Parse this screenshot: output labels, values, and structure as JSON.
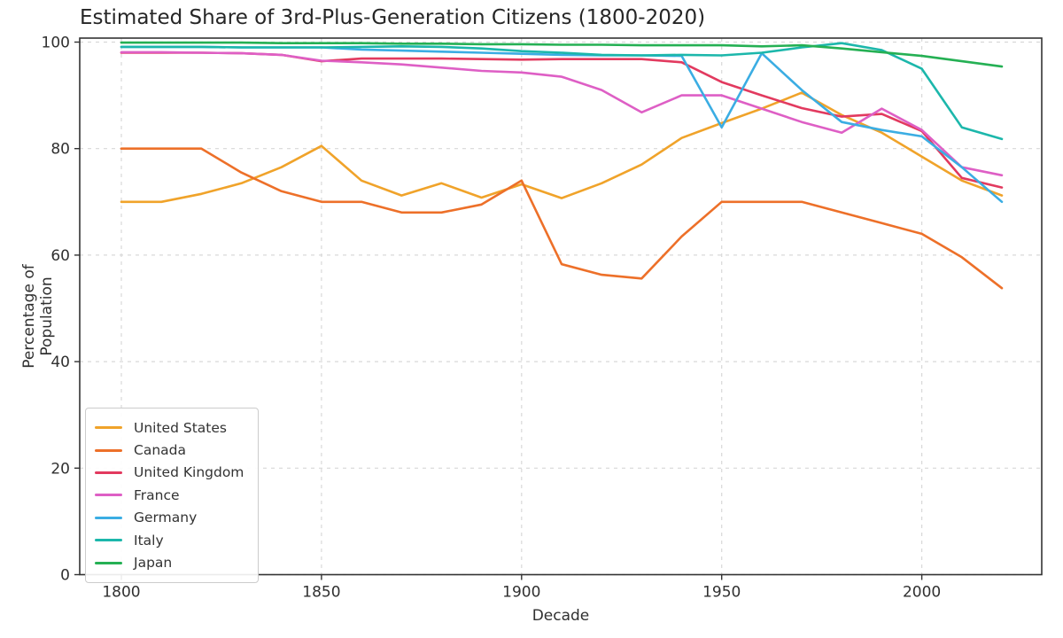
{
  "title": "Estimated Share of 3rd-Plus-Generation Citizens (1800-2020)",
  "chart_data": {
    "type": "line",
    "xlabel": "Decade",
    "ylabel": "Percentage of Population",
    "x": [
      1800,
      1810,
      1820,
      1830,
      1840,
      1850,
      1860,
      1870,
      1880,
      1890,
      1900,
      1910,
      1920,
      1930,
      1940,
      1950,
      1960,
      1970,
      1980,
      1990,
      2000,
      2010,
      2020
    ],
    "x_ticks": [
      1800,
      1850,
      1900,
      1950,
      2000
    ],
    "y_ticks": [
      0,
      20,
      40,
      60,
      80,
      100
    ],
    "xlim": [
      1789,
      2031
    ],
    "ylim": [
      0,
      100
    ],
    "grid": true,
    "grid_style": "dashed",
    "legend_position": "lower left",
    "series": [
      {
        "name": "United States",
        "color": "#F0A32A",
        "values": [
          70,
          70,
          71.5,
          73.5,
          76.5,
          80.5,
          74,
          71.2,
          73.5,
          70.8,
          73.3,
          70.7,
          73.5,
          77,
          82,
          84.8,
          87.5,
          90.5,
          86.3,
          83,
          78.5,
          74,
          71.2
        ]
      },
      {
        "name": "Canada",
        "color": "#ED7029",
        "values": [
          80,
          80,
          80,
          75.5,
          72,
          70,
          70,
          68,
          68,
          69.5,
          74,
          58.3,
          56.3,
          55.6,
          63.5,
          70,
          70,
          70,
          68,
          66,
          64,
          59.6,
          53.8
        ]
      },
      {
        "name": "United Kingdom",
        "color": "#E23A5F",
        "values": [
          98,
          98,
          98,
          97.9,
          97.6,
          96.4,
          96.9,
          96.9,
          96.9,
          96.8,
          96.7,
          96.8,
          96.8,
          96.8,
          96.2,
          92.5,
          90,
          87.6,
          86,
          86.5,
          83.3,
          74.5,
          72.7
        ]
      },
      {
        "name": "France",
        "color": "#DE5FC5",
        "values": [
          98.1,
          98.1,
          98,
          97.9,
          97.6,
          96.5,
          96.2,
          95.8,
          95.2,
          94.6,
          94.3,
          93.5,
          91,
          86.8,
          90,
          90,
          87.5,
          85,
          83,
          87.5,
          83.5,
          76.5,
          75
        ]
      },
      {
        "name": "Germany",
        "color": "#3BADE3",
        "values": [
          99.1,
          99.1,
          99.1,
          99,
          99,
          99,
          98.6,
          98.4,
          98.2,
          98,
          97.8,
          97.6,
          97.5,
          97.5,
          97.4,
          84,
          97.9,
          91,
          85,
          83.5,
          82.3,
          76.5,
          70
        ]
      },
      {
        "name": "Italy",
        "color": "#1CB7AB",
        "values": [
          99.1,
          99.1,
          99.1,
          99,
          99,
          99,
          99.1,
          99.2,
          99.1,
          98.8,
          98.3,
          98,
          97.6,
          97.5,
          97.6,
          97.5,
          98,
          99,
          99.8,
          98.5,
          95,
          84,
          81.8
        ]
      },
      {
        "name": "Japan",
        "color": "#25B054",
        "values": [
          99.9,
          99.9,
          99.9,
          99.9,
          99.8,
          99.8,
          99.8,
          99.7,
          99.7,
          99.6,
          99.6,
          99.5,
          99.5,
          99.4,
          99.4,
          99.4,
          99.2,
          99.4,
          98.8,
          98.1,
          97.4,
          96.4,
          95.4
        ]
      }
    ],
    "axis_color": "#333333",
    "grid_color": "#d8d8d8"
  }
}
